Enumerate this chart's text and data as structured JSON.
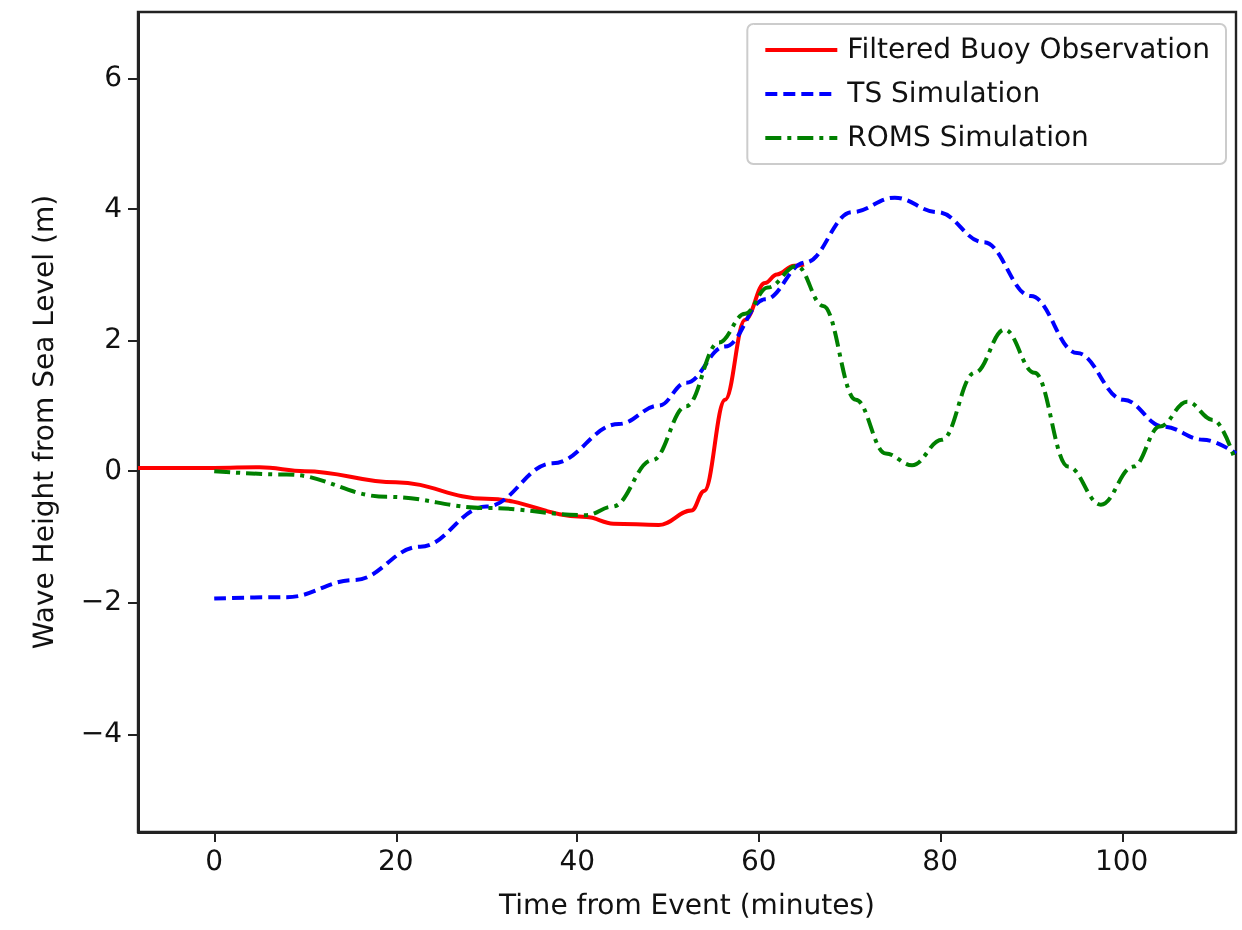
{
  "chart_data": {
    "type": "line",
    "xlabel": "Time from Event (minutes)",
    "ylabel": "Wave Height from Sea Level (m)",
    "xlim": [
      -8.4,
      112.6
    ],
    "ylim": [
      -5.5,
      7
    ],
    "xticks": [
      0,
      20,
      40,
      60,
      80,
      100
    ],
    "yticks": [
      -4,
      -2,
      0,
      2,
      4,
      6
    ],
    "grid": false,
    "legend": "top right",
    "marker": "none",
    "series": [
      {
        "name": "Filtered Buoy Observation",
        "color": "#ff0000",
        "line_style": "solid",
        "x": [
          -8.4,
          0,
          5,
          10,
          20,
          30,
          41,
          44,
          49,
          52.6,
          54,
          56.3,
          58.5,
          60.7,
          62,
          63.9,
          65
        ],
        "values": [
          0.05,
          0.05,
          0.06,
          0.0,
          -0.17,
          -0.42,
          -0.7,
          -0.8,
          -0.82,
          -0.6,
          -0.3,
          1.09,
          2.31,
          2.87,
          3.0,
          3.13,
          3.15
        ]
      },
      {
        "name": "TS Simulation",
        "color": "#0000ff",
        "line_style": "dashed",
        "x": [
          0,
          8,
          15.4,
          22.7,
          30,
          37.3,
          44.6,
          49,
          52,
          56.3,
          60.7,
          65.1,
          70.3,
          75,
          79.7,
          84.8,
          90,
          95.1,
          100.2,
          104.6,
          109,
          112.6
        ],
        "values": [
          -1.94,
          -1.92,
          -1.66,
          -1.15,
          -0.54,
          0.12,
          0.72,
          1.0,
          1.35,
          1.9,
          2.62,
          3.18,
          3.95,
          4.17,
          3.95,
          3.49,
          2.67,
          1.8,
          1.09,
          0.68,
          0.48,
          0.27
        ]
      },
      {
        "name": "ROMS Simulation",
        "color": "#008000",
        "line_style": "dashdot",
        "x": [
          0,
          8,
          19,
          30,
          41,
          43.9,
          48.3,
          52,
          55.6,
          58.5,
          61,
          64.2,
          67.1,
          70.7,
          74,
          76.9,
          80.2,
          83.8,
          87.1,
          90.4,
          94.1,
          97.7,
          101.3,
          104.2,
          107.2,
          110.1,
          112.5
        ],
        "values": [
          0,
          -0.05,
          -0.39,
          -0.56,
          -0.67,
          -0.54,
          0.17,
          0.99,
          1.96,
          2.4,
          2.8,
          3.13,
          2.52,
          1.09,
          0.27,
          0.09,
          0.48,
          1.5,
          2.16,
          1.5,
          0.07,
          -0.51,
          0.07,
          0.68,
          1.06,
          0.78,
          0.17
        ]
      }
    ]
  }
}
